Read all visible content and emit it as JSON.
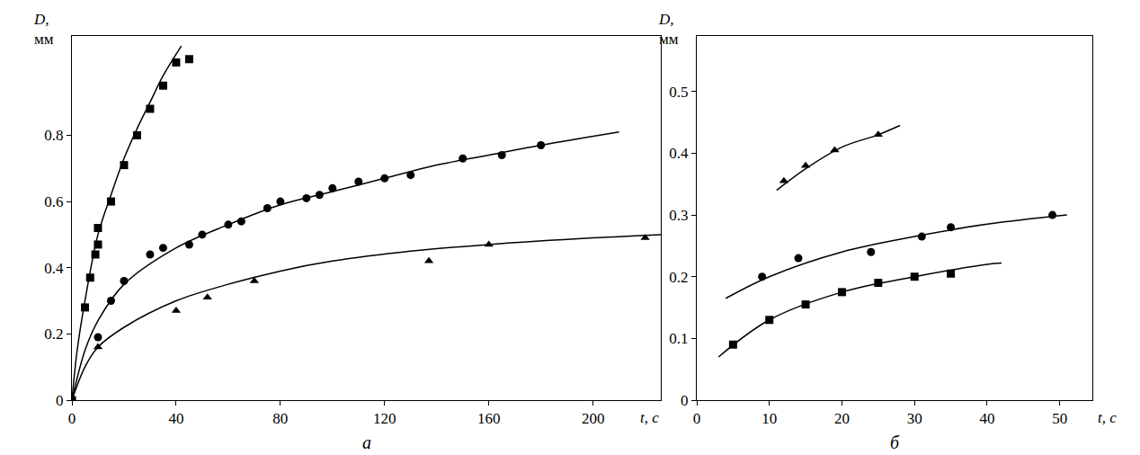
{
  "chart_data": [
    {
      "type": "scatter",
      "label": "а",
      "x_label": "t, с",
      "y_label": "D, мм",
      "xlim": [
        0,
        226
      ],
      "xticks": [
        0,
        40,
        80,
        120,
        160,
        200
      ],
      "ylim": [
        0,
        1.1
      ],
      "yticks": [
        0,
        0.2,
        0.4,
        0.6,
        0.8
      ],
      "series": [
        {
          "type": "scatter",
          "marker": "square",
          "color": "#000000",
          "x": [
            0,
            5,
            7,
            9,
            10,
            10,
            15,
            20,
            25,
            30,
            35,
            40,
            45
          ],
          "values": [
            0,
            0.28,
            0.37,
            0.44,
            0.47,
            0.52,
            0.6,
            0.71,
            0.8,
            0.88,
            0.95,
            1.02,
            1.03
          ]
        },
        {
          "type": "line",
          "color": "#000000",
          "x": [
            0,
            2,
            5,
            10,
            15,
            20,
            25,
            30,
            35,
            42
          ],
          "values": [
            0,
            0.15,
            0.3,
            0.5,
            0.62,
            0.73,
            0.82,
            0.9,
            0.98,
            1.07
          ]
        },
        {
          "type": "scatter",
          "marker": "circle",
          "color": "#000000",
          "x": [
            0,
            10,
            15,
            20,
            30,
            35,
            45,
            50,
            60,
            65,
            75,
            80,
            90,
            95,
            100,
            110,
            120,
            130,
            150,
            165,
            180
          ],
          "values": [
            0,
            0.19,
            0.3,
            0.36,
            0.44,
            0.46,
            0.47,
            0.5,
            0.53,
            0.54,
            0.58,
            0.6,
            0.61,
            0.62,
            0.64,
            0.66,
            0.67,
            0.68,
            0.73,
            0.74,
            0.77
          ]
        },
        {
          "type": "line",
          "color": "#000000",
          "x": [
            0,
            5,
            10,
            20,
            40,
            60,
            80,
            100,
            120,
            140,
            160,
            180,
            210
          ],
          "values": [
            0,
            0.15,
            0.24,
            0.35,
            0.46,
            0.53,
            0.59,
            0.63,
            0.67,
            0.71,
            0.74,
            0.77,
            0.81
          ]
        },
        {
          "type": "scatter",
          "marker": "triangle",
          "color": "#000000",
          "x": [
            0,
            10,
            40,
            52,
            70,
            137,
            160,
            220
          ],
          "values": [
            0,
            0.16,
            0.27,
            0.31,
            0.36,
            0.42,
            0.47,
            0.49
          ]
        },
        {
          "type": "line",
          "color": "#000000",
          "x": [
            0,
            5,
            10,
            20,
            40,
            60,
            80,
            100,
            130,
            160,
            200,
            226
          ],
          "values": [
            0,
            0.1,
            0.16,
            0.22,
            0.3,
            0.35,
            0.39,
            0.42,
            0.45,
            0.47,
            0.49,
            0.5
          ]
        }
      ]
    },
    {
      "type": "scatter",
      "label": "б",
      "x_label": "t, с",
      "y_label": "D, мм",
      "xlim": [
        0,
        54.5
      ],
      "xticks": [
        0,
        10,
        20,
        30,
        40,
        50
      ],
      "ylim": [
        0,
        0.59
      ],
      "yticks": [
        0,
        0.1,
        0.2,
        0.3,
        0.4,
        0.5
      ],
      "series": [
        {
          "type": "scatter",
          "marker": "triangle",
          "color": "#000000",
          "x": [
            12,
            15,
            19,
            25
          ],
          "values": [
            0.355,
            0.38,
            0.405,
            0.43
          ]
        },
        {
          "type": "line",
          "color": "#000000",
          "x": [
            11,
            15,
            20,
            25,
            28
          ],
          "values": [
            0.34,
            0.375,
            0.41,
            0.43,
            0.445
          ]
        },
        {
          "type": "scatter",
          "marker": "circle",
          "color": "#000000",
          "x": [
            9,
            14,
            24,
            31,
            35,
            49
          ],
          "values": [
            0.2,
            0.23,
            0.24,
            0.265,
            0.28,
            0.3
          ]
        },
        {
          "type": "line",
          "color": "#000000",
          "x": [
            4,
            10,
            20,
            30,
            40,
            51
          ],
          "values": [
            0.165,
            0.2,
            0.24,
            0.265,
            0.285,
            0.3
          ]
        },
        {
          "type": "scatter",
          "marker": "square",
          "color": "#000000",
          "x": [
            5,
            10,
            15,
            20,
            25,
            30,
            35
          ],
          "values": [
            0.09,
            0.13,
            0.155,
            0.175,
            0.19,
            0.2,
            0.205
          ]
        },
        {
          "type": "line",
          "color": "#000000",
          "x": [
            3,
            10,
            20,
            30,
            40,
            42
          ],
          "values": [
            0.07,
            0.13,
            0.175,
            0.2,
            0.22,
            0.222
          ]
        }
      ]
    }
  ]
}
